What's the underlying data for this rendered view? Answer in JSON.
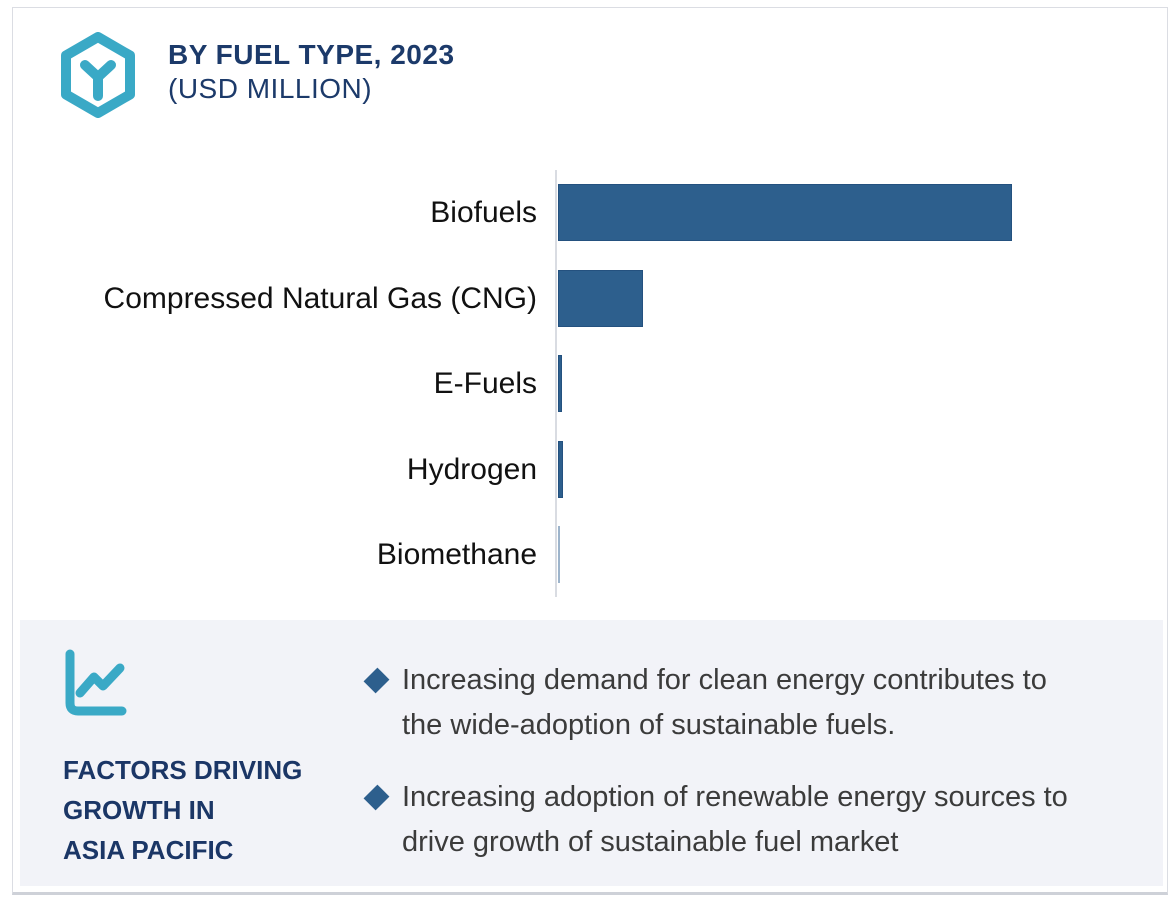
{
  "header": {
    "title_line1": "BY FUEL TYPE, 2023",
    "title_line2": "(USD MILLION)",
    "logo_icon": "hexagon-molecule-icon"
  },
  "chart_data": {
    "type": "bar",
    "orientation": "horizontal",
    "title": "BY FUEL TYPE, 2023 (USD MILLION)",
    "categories": [
      "Biofuels",
      "Compressed Natural Gas (CNG)",
      "E-Fuels",
      "Hydrogen",
      "Biomethane"
    ],
    "values_relative_pct_of_max": [
      100,
      18.7,
      0.9,
      1.0,
      0.4
    ],
    "bar_colors": [
      "#2d5f8d",
      "#2d5f8d",
      "#2d5f8d",
      "#2d5f8d",
      "#9db4cb"
    ],
    "bar_border_color": "#24517f",
    "axis_color": "#d9dce2",
    "value_axis": {
      "labeled": false,
      "unit": "USD Million"
    },
    "legend": "none",
    "grid": "off"
  },
  "footer": {
    "icon": "line-chart-icon",
    "heading_lines": [
      "FACTORS DRIVING",
      "GROWTH IN",
      "ASIA PACIFIC"
    ],
    "bullets": [
      {
        "marker": "diamond",
        "lines": [
          "Increasing demand for clean energy contributes to",
          "the wide-adoption of sustainable fuels."
        ]
      },
      {
        "marker": "diamond",
        "lines": [
          "Increasing adoption of renewable energy sources to",
          "drive growth of sustainable fuel market"
        ]
      }
    ]
  },
  "colors": {
    "teal_accent": "#3aa9c6",
    "navy_text": "#1c3a6a",
    "bar_blue": "#2d5f8d",
    "footer_background": "#f2f3f8",
    "body_text": "#3b3b3b",
    "card_border": "#dbdde3"
  }
}
